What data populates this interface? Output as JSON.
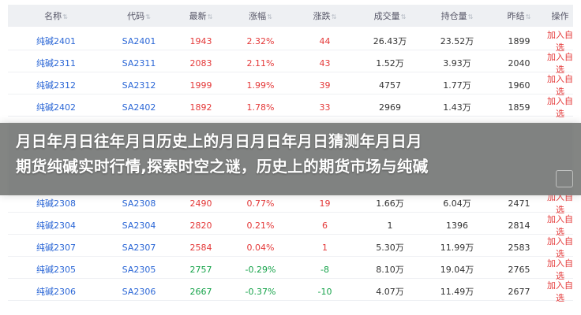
{
  "table": {
    "headers": [
      "名称",
      "代码",
      "最新",
      "涨幅",
      "涨跌",
      "成交量",
      "持仓量",
      "昨结",
      "操作"
    ],
    "sortable": [
      true,
      true,
      true,
      true,
      true,
      true,
      true,
      true,
      false
    ],
    "rows_top": [
      {
        "name": "纯碱2401",
        "code": "SA2401",
        "last": "1943",
        "pct": "2.32%",
        "chg": "44",
        "vol": "26.43万",
        "oi": "23.52万",
        "prev": "1899",
        "op": "加入自选",
        "dir": "up"
      },
      {
        "name": "纯碱2311",
        "code": "SA2311",
        "last": "2083",
        "pct": "2.11%",
        "chg": "43",
        "vol": "1.52万",
        "oi": "3.93万",
        "prev": "2040",
        "op": "加入自选",
        "dir": "up"
      },
      {
        "name": "纯碱2312",
        "code": "SA2312",
        "last": "1999",
        "pct": "1.99%",
        "chg": "39",
        "vol": "4757",
        "oi": "1.77万",
        "prev": "1960",
        "op": "加入自选",
        "dir": "up"
      },
      {
        "name": "纯碱2402",
        "code": "SA2402",
        "last": "1892",
        "pct": "1.78%",
        "chg": "33",
        "vol": "2969",
        "oi": "1.43万",
        "prev": "1859",
        "op": "加入自选",
        "dir": "up"
      }
    ],
    "rows_bottom": [
      {
        "name": "纯碱2308",
        "code": "SA2308",
        "last": "2490",
        "pct": "0.77%",
        "chg": "19",
        "vol": "1.66万",
        "oi": "6.04万",
        "prev": "2471",
        "op": "加入自选",
        "dir": "up"
      },
      {
        "name": "纯碱2304",
        "code": "SA2304",
        "last": "2820",
        "pct": "0.21%",
        "chg": "6",
        "vol": "1",
        "oi": "1396",
        "prev": "2814",
        "op": "加入自选",
        "dir": "up"
      },
      {
        "name": "纯碱2307",
        "code": "SA2307",
        "last": "2584",
        "pct": "0.04%",
        "chg": "1",
        "vol": "5.30万",
        "oi": "11.99万",
        "prev": "2583",
        "op": "加入自选",
        "dir": "up"
      },
      {
        "name": "纯碱2305",
        "code": "SA2305",
        "last": "2757",
        "pct": "-0.29%",
        "chg": "-8",
        "vol": "8.10万",
        "oi": "19.04万",
        "prev": "2765",
        "op": "加入自选",
        "dir": "down"
      },
      {
        "name": "纯碱2306",
        "code": "SA2306",
        "last": "2667",
        "pct": "-0.37%",
        "chg": "-10",
        "vol": "4.07万",
        "oi": "11.49万",
        "prev": "2677",
        "op": "加入自选",
        "dir": "down"
      }
    ]
  },
  "banner": {
    "line1": "月日年月日往年月日历史上的月日月日年月日猜测年月日月",
    "line2": "期货纯碱实时行情,探索时空之谜，历史上的期货市场与纯碱"
  },
  "colors": {
    "up": "#e43838",
    "down": "#16a34a",
    "link": "#2a66d6"
  }
}
